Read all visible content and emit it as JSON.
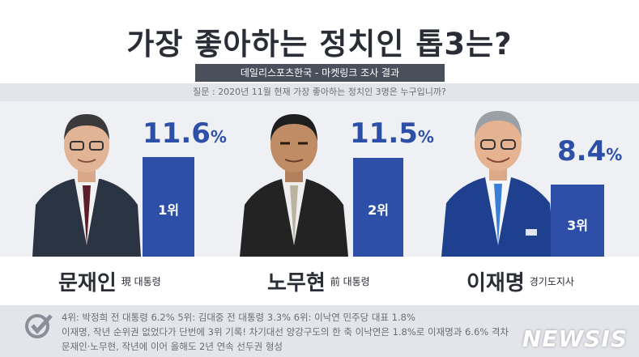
{
  "header": {
    "title": "가장 좋아하는 정치인 톱3는?",
    "source": "데일리스포츠한국 - 마켓링크 조사 결과",
    "question": "질문 : 2020년 11월 현재 가장 좋아하는 정치인 3명은 누구입니까?"
  },
  "chart_data": {
    "type": "bar",
    "categories": [
      "문재인",
      "노무현",
      "이재명"
    ],
    "values": [
      11.6,
      11.5,
      8.4
    ],
    "unit": "%",
    "ranks": [
      "1위",
      "2위",
      "3위"
    ],
    "titles": [
      "現 대통령",
      "前 대통령",
      "경기도지사"
    ],
    "title": "가장 좋아하는 정치인 톱3는?"
  },
  "people": [
    {
      "name": "문재인",
      "title": "現 대통령",
      "pct": "11.6",
      "rank": "1위"
    },
    {
      "name": "노무현",
      "title": "前 대통령",
      "pct": "11.5",
      "rank": "2위"
    },
    {
      "name": "이재명",
      "title": "경기도지사",
      "pct": "8.4",
      "rank": "3위"
    }
  ],
  "pct_unit": "%",
  "footer": {
    "line1": "4위: 박정희 전 대통령 6.2%     5위: 김대중 전 대통령 3.3%     6위: 이낙연 민주당 대표 1.8%",
    "line2": "이재명, 작년 순위권 없었다가 단번에 3위 기록!  차기대선 양강구도의 한 축 이낙연은 1.8%로  이재명과 6.6% 격차",
    "line3": "문재인·노무현, 작년에 이어 올해도 2년 연속 선두권 형성"
  },
  "watermark": "NEWSIS",
  "colors": {
    "bar": "#2e4fa8",
    "title": "#2a2d36",
    "band": "#4a4f5c"
  }
}
